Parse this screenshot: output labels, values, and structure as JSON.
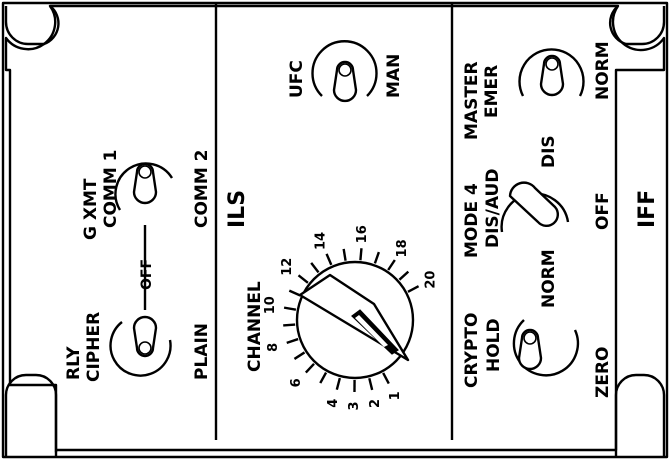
{
  "panel": {
    "left_section": {
      "rly_label": "RLY",
      "cipher_label": "CIPHER",
      "plain_label": "PLAIN",
      "off_label": "OFF",
      "gxmt_label": "G XMT",
      "comm1_label": "COMM 1",
      "comm2_label": "COMM 2"
    },
    "ils_section": {
      "title": "ILS",
      "ufc_label": "UFC",
      "man_label": "MAN",
      "channel_label": "CHANNEL",
      "channel_numbers": [
        "1",
        "2",
        "3",
        "4",
        "6",
        "8",
        "10",
        "12",
        "14",
        "16",
        "18",
        "20"
      ],
      "channel_selected": "1"
    },
    "iff_section": {
      "title": "IFF",
      "master_label": "MASTER",
      "emer_label": "EMER",
      "norm_label": "NORM",
      "mode4_label": "MODE 4",
      "dis_aud_label": "DIS/AUD",
      "dis_label": "DIS",
      "off_label": "OFF",
      "crypto_label": "CRYPTO",
      "hold_label": "HOLD",
      "crypto_norm_label": "NORM",
      "zero_label": "ZERO"
    }
  }
}
